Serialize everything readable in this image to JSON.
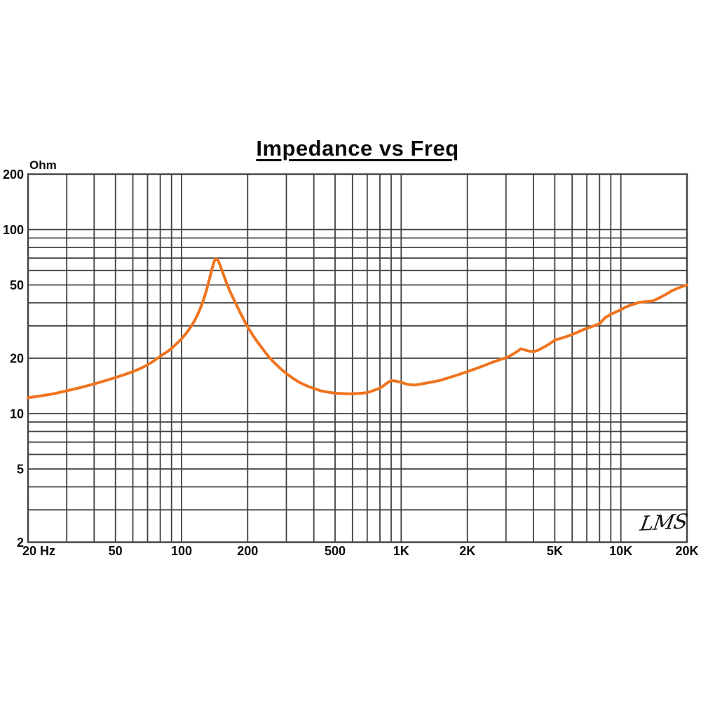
{
  "chart_data": {
    "type": "line",
    "title": "Impedance vs Freq",
    "ylabel": "Ohm",
    "xlabel": "",
    "watermark": "LMS",
    "xscale": "log",
    "yscale": "log",
    "xlim": [
      20,
      20000
    ],
    "ylim": [
      2,
      200
    ],
    "grid": "on",
    "legend": "none",
    "colors": {
      "curve": "#F0731E",
      "grid": "#414141",
      "text": "#0a0a0a",
      "background": "#ffffff"
    },
    "x_ticks": [
      {
        "v": 20,
        "label": "20 Hz"
      },
      {
        "v": 50,
        "label": "50"
      },
      {
        "v": 100,
        "label": "100"
      },
      {
        "v": 200,
        "label": "200"
      },
      {
        "v": 500,
        "label": "500"
      },
      {
        "v": 1000,
        "label": "1K"
      },
      {
        "v": 2000,
        "label": "2K"
      },
      {
        "v": 5000,
        "label": "5K"
      },
      {
        "v": 10000,
        "label": "10K"
      },
      {
        "v": 20000,
        "label": "20K"
      }
    ],
    "y_ticks": [
      {
        "v": 200,
        "label": "200"
      },
      {
        "v": 100,
        "label": "100"
      },
      {
        "v": 50,
        "label": "50"
      },
      {
        "v": 20,
        "label": "20"
      },
      {
        "v": 10,
        "label": "10"
      },
      {
        "v": 5,
        "label": "5"
      },
      {
        "v": 2,
        "label": "2"
      }
    ],
    "x_gridlines": [
      20,
      30,
      40,
      50,
      60,
      70,
      80,
      90,
      100,
      200,
      300,
      400,
      500,
      600,
      700,
      800,
      900,
      1000,
      2000,
      3000,
      4000,
      5000,
      6000,
      7000,
      8000,
      9000,
      10000,
      20000
    ],
    "y_gridlines": [
      2,
      3,
      4,
      5,
      6,
      7,
      8,
      9,
      10,
      20,
      30,
      40,
      50,
      60,
      70,
      80,
      90,
      100,
      200
    ],
    "series": [
      {
        "name": "Impedance",
        "unit": "Ohm",
        "color": "#F0731E",
        "points": [
          [
            20,
            12.2
          ],
          [
            23,
            12.5
          ],
          [
            26,
            12.8
          ],
          [
            30,
            13.3
          ],
          [
            35,
            13.9
          ],
          [
            40,
            14.5
          ],
          [
            45,
            15.1
          ],
          [
            50,
            15.7
          ],
          [
            55,
            16.3
          ],
          [
            60,
            16.9
          ],
          [
            65,
            17.6
          ],
          [
            70,
            18.4
          ],
          [
            75,
            19.4
          ],
          [
            80,
            20.5
          ],
          [
            85,
            21.5
          ],
          [
            90,
            22.6
          ],
          [
            95,
            24.0
          ],
          [
            100,
            25.5
          ],
          [
            105,
            27.3
          ],
          [
            110,
            29.5
          ],
          [
            115,
            32.2
          ],
          [
            120,
            35.8
          ],
          [
            125,
            40.5
          ],
          [
            130,
            47.0
          ],
          [
            134,
            54.0
          ],
          [
            138,
            62.0
          ],
          [
            141,
            67.5
          ],
          [
            143,
            69.5
          ],
          [
            146,
            68.5
          ],
          [
            149,
            65.0
          ],
          [
            152,
            61.0
          ],
          [
            156,
            56.0
          ],
          [
            160,
            51.5
          ],
          [
            165,
            47.0
          ],
          [
            170,
            43.5
          ],
          [
            175,
            40.5
          ],
          [
            180,
            37.8
          ],
          [
            185,
            35.3
          ],
          [
            190,
            33.2
          ],
          [
            195,
            31.2
          ],
          [
            200,
            29.6
          ],
          [
            210,
            26.9
          ],
          [
            220,
            24.8
          ],
          [
            230,
            23.1
          ],
          [
            240,
            21.6
          ],
          [
            250,
            20.3
          ],
          [
            260,
            19.3
          ],
          [
            280,
            17.7
          ],
          [
            300,
            16.5
          ],
          [
            320,
            15.6
          ],
          [
            340,
            14.9
          ],
          [
            360,
            14.4
          ],
          [
            380,
            14.0
          ],
          [
            400,
            13.7
          ],
          [
            430,
            13.3
          ],
          [
            460,
            13.1
          ],
          [
            500,
            12.9
          ],
          [
            540,
            12.85
          ],
          [
            580,
            12.8
          ],
          [
            620,
            12.85
          ],
          [
            660,
            12.9
          ],
          [
            700,
            13.0
          ],
          [
            740,
            13.3
          ],
          [
            780,
            13.6
          ],
          [
            820,
            14.0
          ],
          [
            850,
            14.5
          ],
          [
            880,
            14.9
          ],
          [
            900,
            15.1
          ],
          [
            930,
            15.05
          ],
          [
            960,
            14.95
          ],
          [
            1000,
            14.8
          ],
          [
            1050,
            14.5
          ],
          [
            1100,
            14.35
          ],
          [
            1150,
            14.3
          ],
          [
            1200,
            14.4
          ],
          [
            1300,
            14.65
          ],
          [
            1400,
            14.9
          ],
          [
            1500,
            15.15
          ],
          [
            1600,
            15.5
          ],
          [
            1800,
            16.2
          ],
          [
            2000,
            16.9
          ],
          [
            2200,
            17.6
          ],
          [
            2400,
            18.3
          ],
          [
            2600,
            19.0
          ],
          [
            2800,
            19.6
          ],
          [
            3000,
            20.1
          ],
          [
            3200,
            20.9
          ],
          [
            3400,
            21.9
          ],
          [
            3500,
            22.5
          ],
          [
            3600,
            22.3
          ],
          [
            3800,
            21.9
          ],
          [
            4000,
            21.7
          ],
          [
            4200,
            22.1
          ],
          [
            4500,
            23.1
          ],
          [
            4800,
            24.2
          ],
          [
            5000,
            25.1
          ],
          [
            5300,
            25.6
          ],
          [
            5700,
            26.3
          ],
          [
            6000,
            26.9
          ],
          [
            6400,
            27.8
          ],
          [
            6800,
            28.7
          ],
          [
            7200,
            29.4
          ],
          [
            7600,
            30.1
          ],
          [
            8000,
            30.8
          ],
          [
            8200,
            31.8
          ],
          [
            8500,
            33.3
          ],
          [
            9000,
            34.6
          ],
          [
            9500,
            35.7
          ],
          [
            10000,
            36.7
          ],
          [
            10500,
            37.9
          ],
          [
            11000,
            38.7
          ],
          [
            11500,
            39.4
          ],
          [
            12000,
            40.1
          ],
          [
            12500,
            40.4
          ],
          [
            13000,
            40.6
          ],
          [
            13500,
            40.8
          ],
          [
            14000,
            41.0
          ],
          [
            14500,
            41.8
          ],
          [
            15000,
            42.6
          ],
          [
            16000,
            44.4
          ],
          [
            17000,
            46.4
          ],
          [
            18000,
            47.8
          ],
          [
            19000,
            49.0
          ],
          [
            20000,
            50.0
          ]
        ]
      }
    ]
  }
}
